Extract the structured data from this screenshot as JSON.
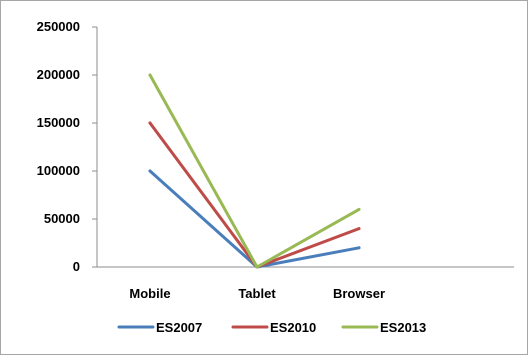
{
  "chart_data": {
    "type": "line",
    "categories": [
      "Mobile",
      "Tablet",
      "Browser"
    ],
    "series": [
      {
        "name": "ES2007",
        "color": "#4a7ebb",
        "values": [
          100000,
          0,
          20000
        ]
      },
      {
        "name": "ES2010",
        "color": "#be4b48",
        "values": [
          150000,
          0,
          40000
        ]
      },
      {
        "name": "ES2013",
        "color": "#98b954",
        "values": [
          200000,
          0,
          60000
        ]
      }
    ],
    "ylim": [
      0,
      250000
    ],
    "yticks": [
      "250000",
      "200000",
      "150000",
      "100000",
      "50000",
      "0"
    ],
    "grid": false,
    "legend_position": "bottom"
  }
}
